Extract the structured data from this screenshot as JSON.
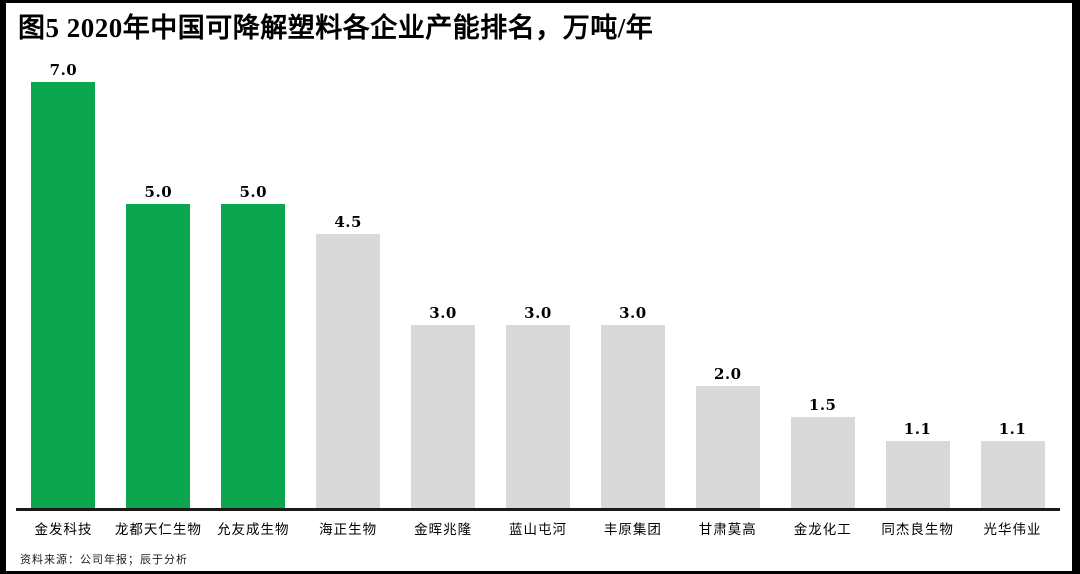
{
  "source_note": "资料来源：公司年报；辰于分析",
  "chart_data": {
    "type": "bar",
    "title": "图5 2020年中国可降解塑料各企业产能排名，万吨/年",
    "unit_label": "万吨/年",
    "categories": [
      "金发科技",
      "龙都天仁生物",
      "允友成生物",
      "海正生物",
      "金晖兆隆",
      "蓝山屯河",
      "丰原集团",
      "甘肃莫高",
      "金龙化工",
      "同杰良生物",
      "光华伟业"
    ],
    "values": [
      7.0,
      5.0,
      5.0,
      4.5,
      3.0,
      3.0,
      3.0,
      2.0,
      1.5,
      1.1,
      1.1
    ],
    "value_labels": [
      "7.0",
      "5.0",
      "5.0",
      "4.5",
      "3.0",
      "3.0",
      "3.0",
      "2.0",
      "1.5",
      "1.1",
      "1.1"
    ],
    "ylim": [
      0,
      7.5
    ],
    "grid": false,
    "legend": false,
    "highlighted_bars": 3,
    "bar_color_highlight": "#0ca64f",
    "bar_color_default": "#d9d9d9",
    "axis_color": "#1a1a1a"
  }
}
